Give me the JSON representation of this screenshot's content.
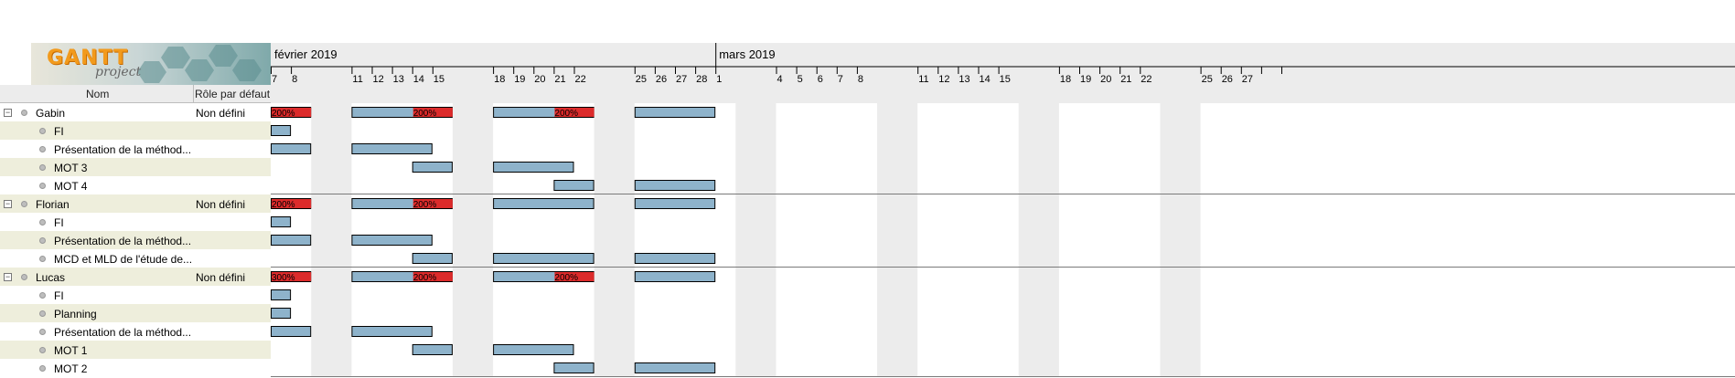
{
  "logo": {
    "name": "GANTT",
    "sub": "project"
  },
  "columns": {
    "name": "Nom",
    "role": "Rôle par défaut"
  },
  "months": [
    {
      "label": "février 2019",
      "date": "2019-02-07"
    },
    {
      "label": "mars 2019",
      "date": "2019-03-01"
    }
  ],
  "timeline": {
    "start": "2019-02-07",
    "end": "2019-03-29"
  },
  "day_labels": [
    "7",
    "8",
    "11",
    "12",
    "13",
    "14",
    "15",
    "18",
    "19",
    "20",
    "21",
    "22",
    "25",
    "26",
    "27",
    "28",
    "1",
    "4",
    "5",
    "6",
    "7",
    "8",
    "11",
    "12",
    "13",
    "14",
    "15",
    "18",
    "19",
    "20",
    "21",
    "22",
    "25",
    "26",
    "27"
  ],
  "rows": [
    {
      "label": "Gabin",
      "role": "Non défini",
      "level": 0,
      "alt": false,
      "bars": [
        [
          "2019-02-07",
          "2019-02-08"
        ],
        [
          "2019-02-11",
          "2019-02-15"
        ],
        [
          "2019-02-18",
          "2019-02-22"
        ],
        [
          "2019-02-25",
          "2019-02-28"
        ]
      ],
      "overloads": [
        [
          "2019-02-07",
          "200%"
        ],
        [
          "2019-02-14",
          "200%"
        ],
        [
          "2019-02-21",
          "200%"
        ]
      ]
    },
    {
      "label": "FI",
      "level": 1,
      "alt": true,
      "bars": [
        [
          "2019-02-07",
          "2019-02-07"
        ]
      ]
    },
    {
      "label": "Présentation de la méthod...",
      "level": 1,
      "alt": false,
      "bars": [
        [
          "2019-02-07",
          "2019-02-08"
        ],
        [
          "2019-02-11",
          "2019-02-14"
        ]
      ]
    },
    {
      "label": "MOT 3",
      "level": 1,
      "alt": true,
      "bars": [
        [
          "2019-02-14",
          "2019-02-15"
        ],
        [
          "2019-02-18",
          "2019-02-21"
        ]
      ]
    },
    {
      "label": "MOT 4",
      "level": 1,
      "alt": false,
      "bars": [
        [
          "2019-02-21",
          "2019-02-22"
        ],
        [
          "2019-02-25",
          "2019-02-28"
        ]
      ]
    },
    {
      "label": "Florian",
      "role": "Non défini",
      "level": 0,
      "alt": true,
      "bars": [
        [
          "2019-02-07",
          "2019-02-08"
        ],
        [
          "2019-02-11",
          "2019-02-15"
        ],
        [
          "2019-02-18",
          "2019-02-22"
        ],
        [
          "2019-02-25",
          "2019-02-28"
        ]
      ],
      "overloads": [
        [
          "2019-02-07",
          "200%"
        ],
        [
          "2019-02-14",
          "200%"
        ]
      ]
    },
    {
      "label": "FI",
      "level": 1,
      "alt": false,
      "bars": [
        [
          "2019-02-07",
          "2019-02-07"
        ]
      ]
    },
    {
      "label": "Présentation de la méthod...",
      "level": 1,
      "alt": true,
      "bars": [
        [
          "2019-02-07",
          "2019-02-08"
        ],
        [
          "2019-02-11",
          "2019-02-14"
        ]
      ]
    },
    {
      "label": "MCD et MLD de l'étude de...",
      "level": 1,
      "alt": false,
      "bars": [
        [
          "2019-02-14",
          "2019-02-15"
        ],
        [
          "2019-02-18",
          "2019-02-22"
        ],
        [
          "2019-02-25",
          "2019-02-28"
        ]
      ]
    },
    {
      "label": "Lucas",
      "role": "Non défini",
      "level": 0,
      "alt": true,
      "bars": [
        [
          "2019-02-07",
          "2019-02-08"
        ],
        [
          "2019-02-11",
          "2019-02-15"
        ],
        [
          "2019-02-18",
          "2019-02-22"
        ],
        [
          "2019-02-25",
          "2019-02-28"
        ]
      ],
      "overloads": [
        [
          "2019-02-07",
          "300%"
        ],
        [
          "2019-02-14",
          "200%"
        ],
        [
          "2019-02-21",
          "200%"
        ]
      ]
    },
    {
      "label": "FI",
      "level": 1,
      "alt": false,
      "bars": [
        [
          "2019-02-07",
          "2019-02-07"
        ]
      ]
    },
    {
      "label": "Planning",
      "level": 1,
      "alt": true,
      "bars": [
        [
          "2019-02-07",
          "2019-02-07"
        ]
      ]
    },
    {
      "label": "Présentation de la méthod...",
      "level": 1,
      "alt": false,
      "bars": [
        [
          "2019-02-07",
          "2019-02-08"
        ],
        [
          "2019-02-11",
          "2019-02-14"
        ]
      ]
    },
    {
      "label": "MOT 1",
      "level": 1,
      "alt": true,
      "bars": [
        [
          "2019-02-14",
          "2019-02-15"
        ],
        [
          "2019-02-18",
          "2019-02-21"
        ]
      ]
    },
    {
      "label": "MOT 2",
      "level": 1,
      "alt": false,
      "bars": [
        [
          "2019-02-21",
          "2019-02-22"
        ],
        [
          "2019-02-25",
          "2019-02-28"
        ]
      ]
    }
  ],
  "colors": {
    "bar": "#8eb3cb",
    "overload": "#dc2b2b",
    "weekend": "#ececec",
    "header_bg": "#ececec",
    "alt_row": "#eeeedc",
    "separator": "#7a7a7a"
  }
}
